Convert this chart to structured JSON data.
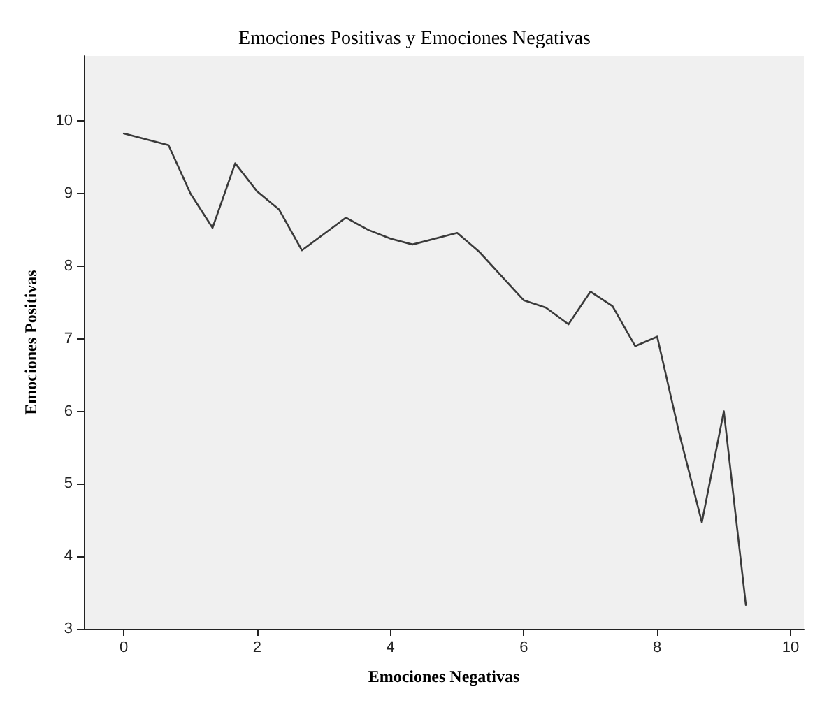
{
  "chart_data": {
    "type": "line",
    "title": "Emociones Positivas y Emociones Negativas",
    "xlabel": "Emociones Negativas",
    "ylabel": "Emociones Positivas",
    "x": [
      0,
      0.67,
      1,
      1.33,
      1.67,
      2,
      2.33,
      2.67,
      3.33,
      3.67,
      4,
      4.33,
      5,
      5.33,
      6,
      6.33,
      6.67,
      7,
      7.33,
      7.67,
      8,
      8.33,
      8.67,
      9,
      9.33
    ],
    "series": [
      {
        "color": "#3a3a3a",
        "values": [
          9.83,
          9.67,
          9.0,
          8.53,
          9.42,
          9.03,
          8.78,
          8.22,
          8.67,
          8.5,
          8.38,
          8.3,
          8.46,
          8.2,
          7.53,
          7.43,
          7.2,
          7.65,
          7.45,
          6.9,
          7.03,
          5.7,
          4.47,
          6.0,
          3.33
        ]
      }
    ],
    "xlim": [
      -0.6,
      10.2
    ],
    "xticks": [
      0,
      2,
      4,
      6,
      8,
      10
    ],
    "ylim": [
      3,
      10.9
    ],
    "yticks": [
      3,
      4,
      5,
      6,
      7,
      8,
      9,
      10
    ],
    "grid": false,
    "marker": "none",
    "line_style": "solid"
  }
}
